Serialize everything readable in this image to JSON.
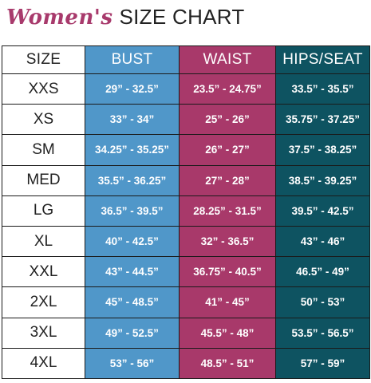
{
  "title": {
    "script": "Women's",
    "main": "SIZE CHART"
  },
  "colors": {
    "bust": "#5097c9",
    "waist": "#a8396a",
    "hips": "#0e5361",
    "title_script": "#a83a6c"
  },
  "columns": [
    "SIZE",
    "BUST",
    "WAIST",
    "HIPS/SEAT"
  ],
  "rows": [
    {
      "size": "XXS",
      "bust": "29” - 32.5”",
      "waist": "23.5” - 24.75”",
      "hips": "33.5” - 35.5”"
    },
    {
      "size": "XS",
      "bust": "33” - 34”",
      "waist": "25” - 26”",
      "hips": "35.75” - 37.25”"
    },
    {
      "size": "SM",
      "bust": "34.25” - 35.25”",
      "waist": "26” - 27”",
      "hips": "37.5” - 38.25”"
    },
    {
      "size": "MED",
      "bust": "35.5” - 36.25”",
      "waist": "27” - 28”",
      "hips": "38.5” - 39.25”"
    },
    {
      "size": "LG",
      "bust": "36.5” - 39.5”",
      "waist": "28.25” - 31.5”",
      "hips": "39.5” - 42.5”"
    },
    {
      "size": "XL",
      "bust": "40” - 42.5”",
      "waist": "32” - 36.5”",
      "hips": "43” - 46”"
    },
    {
      "size": "XXL",
      "bust": "43” - 44.5”",
      "waist": "36.75” - 40.5”",
      "hips": "46.5” - 49”"
    },
    {
      "size": "2XL",
      "bust": "45” - 48.5”",
      "waist": "41” - 45”",
      "hips": "50” - 53”"
    },
    {
      "size": "3XL",
      "bust": "49” - 52.5”",
      "waist": "45.5” - 48”",
      "hips": "53.5” - 56.5”"
    },
    {
      "size": "4XL",
      "bust": "53” - 56”",
      "waist": "48.5” - 51”",
      "hips": "57” - 59”"
    }
  ]
}
